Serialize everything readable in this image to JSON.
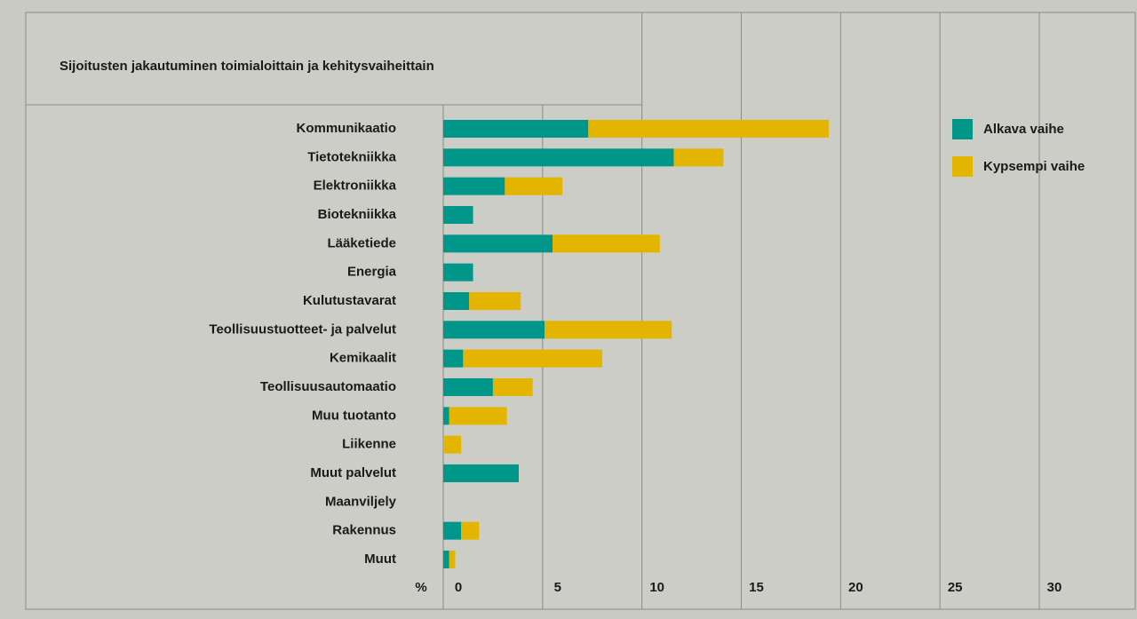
{
  "chart_data": {
    "type": "stacked_bar_horizontal",
    "title": "Sijoitusten jakautuminen toimialoittain ja kehitysvaiheittain",
    "x_label": "%",
    "categories": [
      "Kommunikaatio",
      "Tietotekniikka",
      "Elektroniikka",
      "Biotekniikka",
      "Lääketiede",
      "Energia",
      "Kulutustavarat",
      "Teollisuustuotteet- ja palvelut",
      "Kemikaalit",
      "Teollisuusautomaatio",
      "Muu tuotanto",
      "Liikenne",
      "Muut palvelut",
      "Maanviljely",
      "Rakennus",
      "Muut"
    ],
    "series": [
      {
        "name": "Alkava vaihe",
        "color": "#00968a",
        "values": [
          7.3,
          11.6,
          3.1,
          1.5,
          5.5,
          1.5,
          1.3,
          5.1,
          1.0,
          2.5,
          0.3,
          0,
          3.8,
          0,
          0.9,
          0.3
        ]
      },
      {
        "name": "Kypsempi vaihe",
        "color": "#e3b500",
        "values": [
          12.1,
          2.5,
          2.9,
          0,
          5.4,
          0,
          2.6,
          6.4,
          7.0,
          2.0,
          2.9,
          0.9,
          0,
          0,
          0.9,
          0.3
        ]
      }
    ],
    "xlim": [
      0,
      30
    ],
    "xticks": [
      0,
      5,
      10,
      15,
      20,
      25,
      30
    ],
    "grid": true,
    "legend": "top-right"
  }
}
